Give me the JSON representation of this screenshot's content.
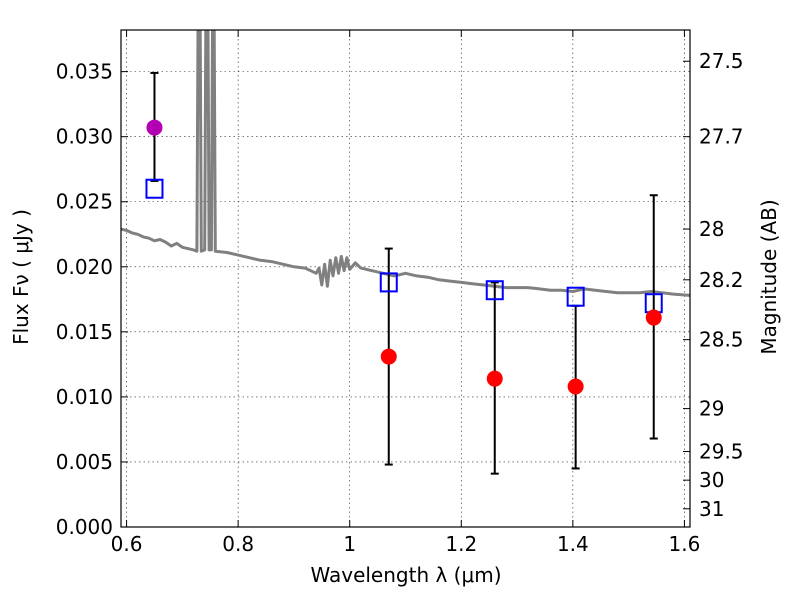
{
  "chart_data": {
    "type": "scatter",
    "xlabel": "Wavelength  λ (μm)",
    "ylabel": "Flux  Fν  ( μJy )",
    "y2label": "Magnitude (AB)",
    "xlim": [
      0.59,
      1.61
    ],
    "ylim": [
      0.0,
      0.0382
    ],
    "grid": true,
    "x_ticks": [
      {
        "value": 0.6,
        "label": "0.6"
      },
      {
        "value": 0.8,
        "label": "0.8"
      },
      {
        "value": 1.0,
        "label": "1"
      },
      {
        "value": 1.2,
        "label": "1.2"
      },
      {
        "value": 1.4,
        "label": "1.4"
      },
      {
        "value": 1.6,
        "label": "1.6"
      }
    ],
    "y_ticks": [
      {
        "value": 0.0,
        "label": "0.000"
      },
      {
        "value": 0.005,
        "label": "0.005"
      },
      {
        "value": 0.01,
        "label": "0.010"
      },
      {
        "value": 0.015,
        "label": "0.015"
      },
      {
        "value": 0.02,
        "label": "0.020"
      },
      {
        "value": 0.025,
        "label": "0.025"
      },
      {
        "value": 0.03,
        "label": "0.030"
      },
      {
        "value": 0.035,
        "label": "0.035"
      }
    ],
    "y2_ticks": [
      {
        "flux": 0.0358,
        "label": "27.5"
      },
      {
        "flux": 0.03,
        "label": "27.7"
      },
      {
        "flux": 0.0229,
        "label": "28"
      },
      {
        "flux": 0.019,
        "label": "28.2"
      },
      {
        "flux": 0.0144,
        "label": "28.5"
      },
      {
        "flux": 0.0091,
        "label": "29"
      },
      {
        "flux": 0.0058,
        "label": "29.5"
      },
      {
        "flux": 0.0036,
        "label": "30"
      },
      {
        "flux": 0.0014,
        "label": "31"
      }
    ],
    "colors": {
      "model": "#808080",
      "observed": "#ff0000",
      "optical": "#b300b3",
      "synthetic": "#0000ff",
      "errorbar": "#000000"
    },
    "series": [
      {
        "kind": "model_spectrum",
        "points": [
          [
            0.59,
            0.0229
          ],
          [
            0.6,
            0.0228
          ],
          [
            0.61,
            0.0226
          ],
          [
            0.62,
            0.0225
          ],
          [
            0.63,
            0.0223
          ],
          [
            0.64,
            0.0222
          ],
          [
            0.65,
            0.022
          ],
          [
            0.66,
            0.0221
          ],
          [
            0.67,
            0.0219
          ],
          [
            0.68,
            0.0216
          ],
          [
            0.69,
            0.0218
          ],
          [
            0.7,
            0.0215
          ],
          [
            0.71,
            0.0214
          ],
          [
            0.72,
            0.0213
          ],
          [
            0.726,
            0.0212
          ],
          [
            0.728,
            0.0382
          ],
          [
            0.732,
            0.0382
          ],
          [
            0.734,
            0.0212
          ],
          [
            0.74,
            0.0213
          ],
          [
            0.742,
            0.0382
          ],
          [
            0.746,
            0.0382
          ],
          [
            0.748,
            0.0213
          ],
          [
            0.752,
            0.0213
          ],
          [
            0.754,
            0.0382
          ],
          [
            0.757,
            0.0382
          ],
          [
            0.759,
            0.0212
          ],
          [
            0.78,
            0.0211
          ],
          [
            0.8,
            0.0209
          ],
          [
            0.82,
            0.0207
          ],
          [
            0.84,
            0.0205
          ],
          [
            0.86,
            0.0204
          ],
          [
            0.88,
            0.0202
          ],
          [
            0.9,
            0.02
          ],
          [
            0.92,
            0.0199
          ],
          [
            0.93,
            0.0197
          ],
          [
            0.94,
            0.0195
          ],
          [
            0.945,
            0.0199
          ],
          [
            0.95,
            0.0186
          ],
          [
            0.955,
            0.0202
          ],
          [
            0.96,
            0.0185
          ],
          [
            0.965,
            0.0205
          ],
          [
            0.97,
            0.0193
          ],
          [
            0.975,
            0.0207
          ],
          [
            0.98,
            0.0195
          ],
          [
            0.985,
            0.0208
          ],
          [
            0.99,
            0.0197
          ],
          [
            0.995,
            0.0207
          ],
          [
            1.0,
            0.0198
          ],
          [
            1.01,
            0.0203
          ],
          [
            1.02,
            0.0199
          ],
          [
            1.04,
            0.0197
          ],
          [
            1.06,
            0.0195
          ],
          [
            1.08,
            0.0193
          ],
          [
            1.1,
            0.0195
          ],
          [
            1.12,
            0.0193
          ],
          [
            1.14,
            0.0192
          ],
          [
            1.16,
            0.019
          ],
          [
            1.18,
            0.0189
          ],
          [
            1.2,
            0.0188
          ],
          [
            1.22,
            0.0187
          ],
          [
            1.24,
            0.0186
          ],
          [
            1.26,
            0.0185
          ],
          [
            1.28,
            0.0184
          ],
          [
            1.3,
            0.0184
          ],
          [
            1.32,
            0.0184
          ],
          [
            1.34,
            0.0183
          ],
          [
            1.36,
            0.0182
          ],
          [
            1.38,
            0.0182
          ],
          [
            1.4,
            0.0181
          ],
          [
            1.42,
            0.0183
          ],
          [
            1.44,
            0.0182
          ],
          [
            1.46,
            0.0181
          ],
          [
            1.48,
            0.018
          ],
          [
            1.5,
            0.018
          ],
          [
            1.52,
            0.018
          ],
          [
            1.54,
            0.0181
          ],
          [
            1.56,
            0.018
          ],
          [
            1.58,
            0.0179
          ],
          [
            1.61,
            0.0178
          ]
        ]
      },
      {
        "kind": "observed_optical",
        "points": [
          {
            "x": 0.65,
            "y": 0.0307,
            "ylo": 0.0266,
            "yhi": 0.0349
          }
        ]
      },
      {
        "kind": "observed_nir",
        "points": [
          {
            "x": 1.07,
            "y": 0.0131,
            "ylo": 0.0048,
            "yhi": 0.0214
          },
          {
            "x": 1.26,
            "y": 0.0114,
            "ylo": 0.0041,
            "yhi": 0.0188
          },
          {
            "x": 1.405,
            "y": 0.0108,
            "ylo": 0.0045,
            "yhi": 0.017
          },
          {
            "x": 1.545,
            "y": 0.0161,
            "ylo": 0.0068,
            "yhi": 0.0255
          }
        ]
      },
      {
        "kind": "synthetic",
        "points": [
          {
            "x": 0.65,
            "y": 0.026
          },
          {
            "x": 1.07,
            "y": 0.0188
          },
          {
            "x": 1.26,
            "y": 0.0182
          },
          {
            "x": 1.405,
            "y": 0.0177
          },
          {
            "x": 1.545,
            "y": 0.0172
          }
        ]
      }
    ]
  }
}
